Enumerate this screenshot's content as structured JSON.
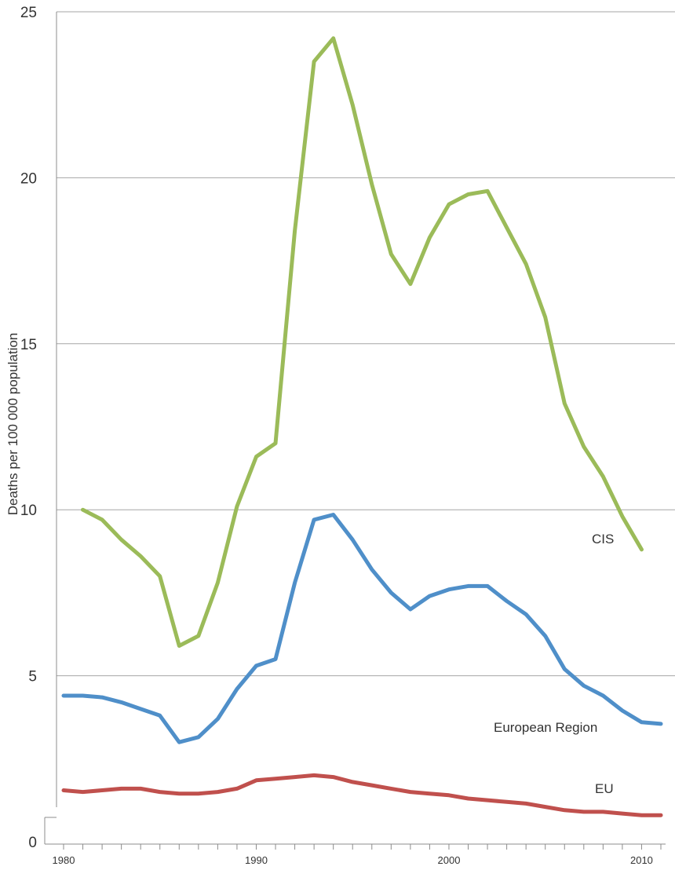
{
  "chart_data": {
    "type": "line",
    "title": "",
    "xlabel": "",
    "ylabel": "Deaths per 100 000 population",
    "xlim": [
      1980,
      2011
    ],
    "ylim": [
      0,
      25
    ],
    "y_ticks": [
      0,
      5,
      10,
      15,
      20,
      25
    ],
    "x_ticks": [
      1980,
      1990,
      2000,
      2010
    ],
    "grid": "horizontal",
    "legend": "none (series labelled inline)",
    "series": [
      {
        "name": "CIS",
        "color": "#9bbb59",
        "points": [
          [
            1981,
            10.0
          ],
          [
            1982,
            9.7
          ],
          [
            1983,
            9.1
          ],
          [
            1984,
            8.6
          ],
          [
            1985,
            8.0
          ],
          [
            1986,
            5.9
          ],
          [
            1987,
            6.2
          ],
          [
            1988,
            7.8
          ],
          [
            1989,
            10.1
          ],
          [
            1990,
            11.6
          ],
          [
            1991,
            12.0
          ],
          [
            1992,
            18.4
          ],
          [
            1993,
            23.5
          ],
          [
            1994,
            24.2
          ],
          [
            1995,
            22.2
          ],
          [
            1996,
            19.8
          ],
          [
            1997,
            17.7
          ],
          [
            1998,
            16.8
          ],
          [
            1999,
            18.2
          ],
          [
            2000,
            19.2
          ],
          [
            2001,
            19.5
          ],
          [
            2002,
            19.6
          ],
          [
            2003,
            18.5
          ],
          [
            2004,
            17.4
          ],
          [
            2005,
            15.8
          ],
          [
            2006,
            13.2
          ],
          [
            2007,
            11.9
          ],
          [
            2008,
            11.0
          ],
          [
            2009,
            9.8
          ],
          [
            2010,
            8.8
          ]
        ]
      },
      {
        "name": "European Region",
        "color": "#4f8fc9",
        "points": [
          [
            1980,
            4.4
          ],
          [
            1981,
            4.4
          ],
          [
            1982,
            4.35
          ],
          [
            1983,
            4.2
          ],
          [
            1984,
            4.0
          ],
          [
            1985,
            3.8
          ],
          [
            1986,
            3.0
          ],
          [
            1987,
            3.15
          ],
          [
            1988,
            3.7
          ],
          [
            1989,
            4.6
          ],
          [
            1990,
            5.3
          ],
          [
            1991,
            5.5
          ],
          [
            1992,
            7.8
          ],
          [
            1993,
            9.7
          ],
          [
            1994,
            9.85
          ],
          [
            1995,
            9.1
          ],
          [
            1996,
            8.2
          ],
          [
            1997,
            7.5
          ],
          [
            1998,
            7.0
          ],
          [
            1999,
            7.4
          ],
          [
            2000,
            7.6
          ],
          [
            2001,
            7.7
          ],
          [
            2002,
            7.7
          ],
          [
            2003,
            7.25
          ],
          [
            2004,
            6.85
          ],
          [
            2005,
            6.2
          ],
          [
            2006,
            5.2
          ],
          [
            2007,
            4.7
          ],
          [
            2008,
            4.4
          ],
          [
            2009,
            3.95
          ],
          [
            2010,
            3.6
          ],
          [
            2011,
            3.55
          ]
        ]
      },
      {
        "name": "EU",
        "color": "#c0504d",
        "points": [
          [
            1980,
            1.55
          ],
          [
            1981,
            1.5
          ],
          [
            1982,
            1.55
          ],
          [
            1983,
            1.6
          ],
          [
            1984,
            1.6
          ],
          [
            1985,
            1.5
          ],
          [
            1986,
            1.45
          ],
          [
            1987,
            1.45
          ],
          [
            1988,
            1.5
          ],
          [
            1989,
            1.6
          ],
          [
            1990,
            1.85
          ],
          [
            1991,
            1.9
          ],
          [
            1992,
            1.95
          ],
          [
            1993,
            2.0
          ],
          [
            1994,
            1.95
          ],
          [
            1995,
            1.8
          ],
          [
            1996,
            1.7
          ],
          [
            1997,
            1.6
          ],
          [
            1998,
            1.5
          ],
          [
            1999,
            1.45
          ],
          [
            2000,
            1.4
          ],
          [
            2001,
            1.3
          ],
          [
            2002,
            1.25
          ],
          [
            2003,
            1.2
          ],
          [
            2004,
            1.15
          ],
          [
            2005,
            1.05
          ],
          [
            2006,
            0.95
          ],
          [
            2007,
            0.9
          ],
          [
            2008,
            0.9
          ],
          [
            2009,
            0.85
          ],
          [
            2010,
            0.8
          ],
          [
            2011,
            0.8
          ]
        ]
      }
    ]
  }
}
